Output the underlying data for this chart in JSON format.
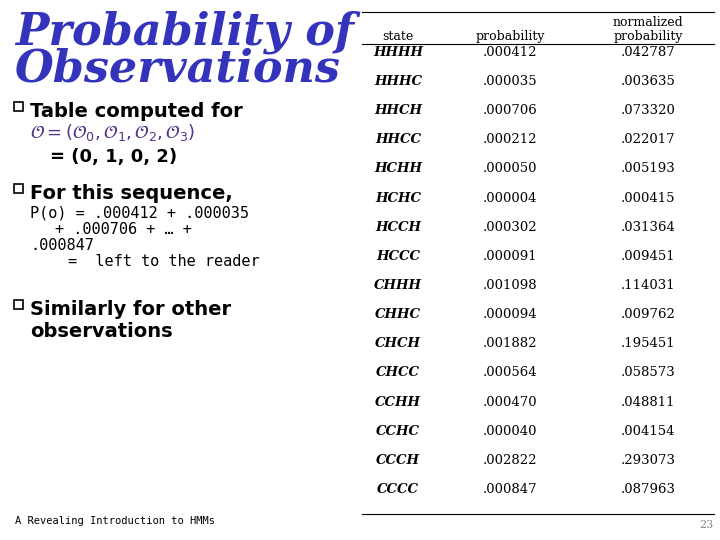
{
  "title_line1": "Probability of",
  "title_line2": "Observations",
  "title_color": "#3333bb",
  "bg_color": "#ffffff",
  "bullet_color": "#000000",
  "formula_color": "#553388",
  "footer": "A Revealing Introduction to HMMs",
  "page_num": "23",
  "table_rows": [
    [
      "HHHH",
      ".000412",
      ".042787"
    ],
    [
      "HHHC",
      ".000035",
      ".003635"
    ],
    [
      "HHCH",
      ".000706",
      ".073320"
    ],
    [
      "HHCC",
      ".000212",
      ".022017"
    ],
    [
      "HCHH",
      ".000050",
      ".005193"
    ],
    [
      "HCHC",
      ".000004",
      ".000415"
    ],
    [
      "HCCH",
      ".000302",
      ".031364"
    ],
    [
      "HCCC",
      ".000091",
      ".009451"
    ],
    [
      "CHHH",
      ".001098",
      ".114031"
    ],
    [
      "CHHC",
      ".000094",
      ".009762"
    ],
    [
      "CHCH",
      ".001882",
      ".195451"
    ],
    [
      "CHCC",
      ".000564",
      ".058573"
    ],
    [
      "CCHH",
      ".000470",
      ".048811"
    ],
    [
      "CCHC",
      ".000040",
      ".004154"
    ],
    [
      "CCCH",
      ".002822",
      ".293073"
    ],
    [
      "CCCC",
      ".000847",
      ".087963"
    ]
  ]
}
